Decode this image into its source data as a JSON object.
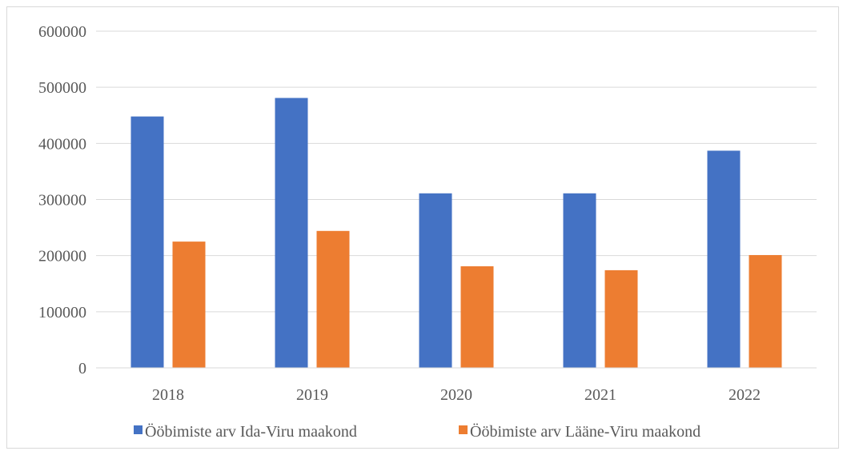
{
  "chart_data": {
    "type": "bar",
    "categories": [
      "2018",
      "2019",
      "2020",
      "2021",
      "2022"
    ],
    "series": [
      {
        "name": "Ööbimiste arv Ida-Viru maakond",
        "color": "#4472c4",
        "values": [
          448000,
          481000,
          311000,
          311000,
          387000
        ]
      },
      {
        "name": "Ööbimiste arv Lääne-Viru maakond",
        "color": "#ed7d31",
        "values": [
          225000,
          244000,
          181000,
          174000,
          201000
        ]
      }
    ],
    "ylim": [
      0,
      600000
    ],
    "yticks": [
      "0",
      "100000",
      "200000",
      "300000",
      "400000",
      "500000",
      "600000"
    ],
    "grid": true,
    "legend_position": "bottom",
    "title": "",
    "xlabel": "",
    "ylabel": ""
  }
}
